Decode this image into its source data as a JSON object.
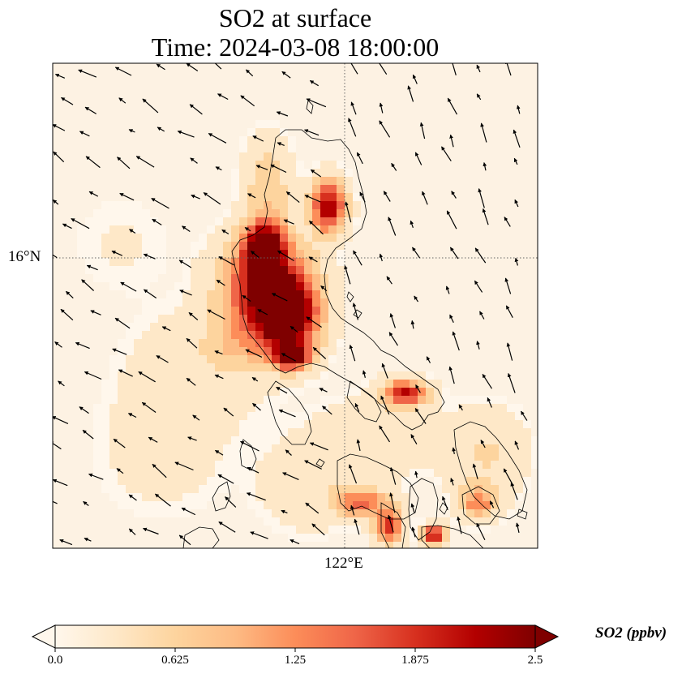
{
  "title_line1": "SO2 at surface",
  "title_line2": "Time: 2024-03-08 18:00:00",
  "lat_label": "16°N",
  "lon_label": "122°E",
  "colorbar": {
    "units_label": "SO2 (ppbv)",
    "ticks": [
      "0.0",
      "0.625",
      "1.25",
      "1.875",
      "2.5"
    ],
    "range": [
      0.0,
      2.5
    ],
    "extend": "both",
    "colormap": "OrRd",
    "colors": [
      "#fff7ec",
      "#fee8c8",
      "#fdd49e",
      "#fdbb84",
      "#fc8d59",
      "#ef6548",
      "#d7301f",
      "#b30000",
      "#7f0000"
    ]
  },
  "map": {
    "variable": "SO2",
    "level": "surface",
    "gridlines": "dotted",
    "overlay": "wind vectors",
    "coastlines": true
  }
}
